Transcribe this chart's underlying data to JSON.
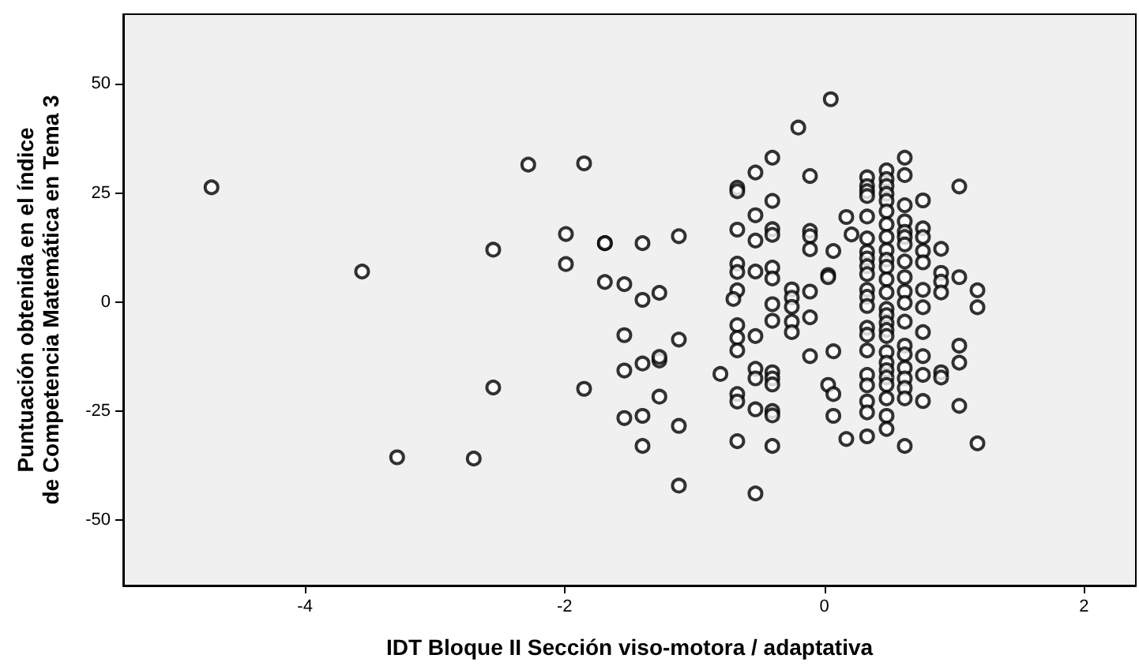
{
  "chart_data": {
    "type": "scatter",
    "xlabel": "IDT Bloque II Sección viso-motora / adaptativa",
    "ylabel": "Puntuación obtenida en el índice de Competencia Matemática en Tema 3",
    "xlim": [
      -5.4,
      2.4
    ],
    "xticks": [
      -4,
      -2,
      0,
      2
    ],
    "ylim": [
      -65,
      66
    ],
    "yticks": [
      -50,
      -25,
      0,
      25,
      50
    ],
    "grid": false,
    "marker": "circle",
    "series": [
      {
        "color": "#000000",
        "x": [
          -4.72,
          -3.56,
          -2.28,
          -1.85,
          -1.99,
          -1.99,
          -1.69,
          -1.69,
          -1.4,
          -2.55,
          -1.69,
          -1.54,
          -1.4,
          -1.27,
          -1.54,
          -1.4,
          -1.54,
          -1.27,
          -1.27,
          -1.27,
          -2.55,
          -1.85,
          -1.54,
          -1.4,
          -1.4,
          -3.29,
          -2.7,
          -1.12,
          -1.12,
          -1.12,
          -1.12,
          -0.8,
          -0.67,
          -0.67,
          -0.67,
          -0.67,
          -0.67,
          -0.67,
          -0.7,
          -0.67,
          -0.67,
          -0.67,
          -0.67,
          -0.67,
          -0.67,
          -0.53,
          -0.53,
          -0.53,
          -0.53,
          -0.53,
          -0.53,
          -0.53,
          -0.53,
          -0.53,
          -0.4,
          -0.4,
          -0.4,
          -0.4,
          -0.4,
          -0.4,
          -0.4,
          -0.4,
          -0.4,
          -0.4,
          -0.4,
          -0.4,
          -0.4,
          -0.4,
          -0.25,
          -0.25,
          -0.25,
          -0.25,
          -0.25,
          -0.11,
          -0.11,
          -0.11,
          -0.11,
          -0.11,
          -0.11,
          -0.11,
          0.17,
          0.21,
          0.07,
          0.03,
          0.03,
          0.07,
          0.03,
          0.07,
          0.07,
          0.17,
          -0.2,
          0.05,
          0.33,
          0.33,
          0.33,
          0.33,
          0.33,
          0.33,
          0.33,
          0.33,
          0.33,
          0.33,
          0.33,
          0.33,
          0.33,
          0.33,
          0.33,
          0.33,
          0.33,
          0.33,
          0.33,
          0.33,
          0.33,
          0.48,
          0.48,
          0.48,
          0.48,
          0.48,
          0.48,
          0.48,
          0.48,
          0.48,
          0.48,
          0.48,
          0.48,
          0.48,
          0.48,
          0.48,
          0.48,
          0.48,
          0.48,
          0.48,
          0.48,
          0.48,
          0.48,
          0.48,
          0.48,
          0.48,
          0.48,
          0.62,
          0.62,
          0.62,
          0.62,
          0.62,
          0.62,
          0.62,
          0.62,
          0.62,
          0.62,
          0.62,
          0.62,
          0.62,
          0.62,
          0.62,
          0.62,
          0.62,
          0.62,
          0.62,
          0.76,
          0.76,
          0.76,
          0.76,
          0.76,
          0.76,
          0.76,
          0.76,
          0.76,
          0.76,
          0.76,
          0.9,
          0.9,
          0.9,
          0.9,
          0.9,
          0.9,
          1.04,
          1.04,
          1.04,
          1.04,
          1.04,
          1.18,
          1.18,
          1.18
        ],
        "values": [
          26.3,
          7.0,
          31.5,
          31.8,
          15.6,
          8.7,
          13.5,
          13.5,
          13.5,
          12.0,
          4.6,
          4.1,
          0.5,
          2.1,
          -7.6,
          -14.1,
          -15.7,
          -13.4,
          -12.6,
          -21.7,
          -19.6,
          -19.9,
          -26.6,
          -26.1,
          -33.0,
          -35.6,
          -35.9,
          15.1,
          -8.6,
          -28.4,
          -42.1,
          -16.5,
          26.2,
          25.4,
          16.6,
          8.8,
          6.9,
          2.7,
          0.7,
          -5.3,
          -8.2,
          -11.1,
          -21.1,
          -22.8,
          -31.9,
          29.7,
          19.9,
          14.1,
          7.0,
          -7.8,
          -15.3,
          -17.5,
          -24.6,
          -43.9,
          33.1,
          23.2,
          16.7,
          15.4,
          7.9,
          5.4,
          -0.5,
          -4.3,
          -16.1,
          -17.5,
          -18.9,
          -25.0,
          -26.0,
          -33.0,
          2.9,
          1.0,
          -1.1,
          -4.5,
          -6.9,
          28.9,
          16.3,
          15.1,
          12.1,
          2.4,
          -3.5,
          -12.4,
          19.5,
          15.5,
          11.7,
          6.2,
          5.7,
          -11.3,
          -19.0,
          -21.1,
          -26.1,
          -31.4,
          40.0,
          46.5,
          28.6,
          26.6,
          25.4,
          24.3,
          19.6,
          14.6,
          11.5,
          10.0,
          8.2,
          6.4,
          2.8,
          1.2,
          -0.9,
          -5.9,
          -7.5,
          -11.1,
          -16.7,
          -19.1,
          -22.8,
          -25.3,
          -30.8,
          30.2,
          28.2,
          26.6,
          24.8,
          23.2,
          20.8,
          17.8,
          14.9,
          11.9,
          9.7,
          8.1,
          5.2,
          2.2,
          -1.6,
          -3.0,
          -4.8,
          -6.4,
          -7.8,
          -11.5,
          -13.9,
          -15.6,
          -17.3,
          -19.0,
          -22.1,
          -26.1,
          -29.1,
          33.1,
          29.1,
          22.2,
          18.5,
          16.1,
          14.9,
          13.2,
          9.3,
          5.7,
          2.4,
          -0.2,
          -4.5,
          -10.0,
          -12.0,
          -15.1,
          -17.5,
          -19.7,
          -22.1,
          -33.0,
          23.3,
          16.9,
          14.9,
          11.7,
          9.1,
          2.8,
          -1.2,
          -6.9,
          -12.4,
          -16.7,
          -22.7,
          12.2,
          6.7,
          4.7,
          2.2,
          -16.1,
          -17.3,
          26.5,
          5.7,
          -10.0,
          -13.9,
          -23.8,
          2.7,
          -1.2,
          -32.4
        ]
      }
    ]
  }
}
